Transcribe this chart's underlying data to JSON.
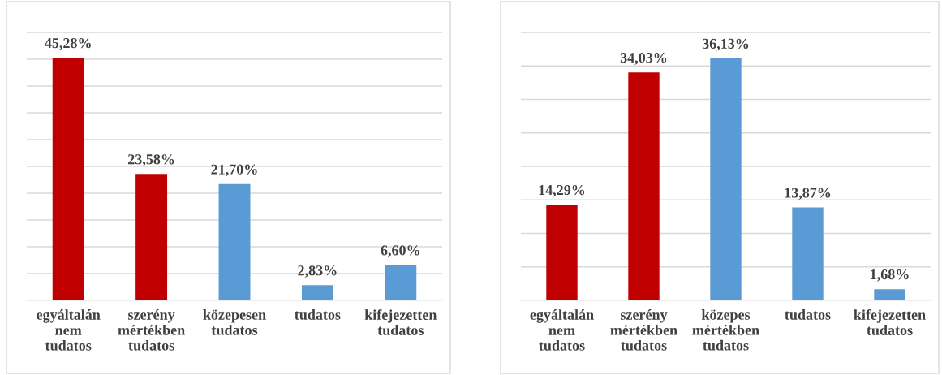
{
  "chart_data": [
    {
      "type": "bar",
      "categories": [
        "egyáltalán\nnem\ntudatos",
        "szerény\nmértékben\ntudatos",
        "közepesen\ntudatos",
        "tudatos",
        "kifejezetten\ntudatos"
      ],
      "values": [
        45.28,
        23.58,
        21.7,
        2.83,
        6.6
      ],
      "colors": [
        "#c00000",
        "#c00000",
        "#5b9bd5",
        "#5b9bd5",
        "#5b9bd5"
      ],
      "value_labels": [
        "45,28%",
        "23,58%",
        "21,70%",
        "2,83%",
        "6,60%"
      ],
      "ylim": [
        0,
        50
      ],
      "yticks": [
        0,
        5,
        10,
        15,
        20,
        25,
        30,
        35,
        40,
        45,
        50
      ],
      "grid": "y",
      "tick_labels": "x"
    },
    {
      "type": "bar",
      "categories": [
        "egyáltalán\nnem\ntudatos",
        "szerény\nmértékben\ntudatos",
        "közepes\nmértékben\ntudatos",
        "tudatos",
        "kifejezetten\ntudatos"
      ],
      "values": [
        14.29,
        34.03,
        36.13,
        13.87,
        1.68
      ],
      "colors": [
        "#c00000",
        "#c00000",
        "#5b9bd5",
        "#5b9bd5",
        "#5b9bd5"
      ],
      "value_labels": [
        "14,29%",
        "34,03%",
        "36,13%",
        "13,87%",
        "1,68%"
      ],
      "ylim": [
        0,
        40
      ],
      "yticks": [
        0,
        5,
        10,
        15,
        20,
        25,
        30,
        35,
        40
      ],
      "grid": "y",
      "tick_labels": "x"
    }
  ]
}
